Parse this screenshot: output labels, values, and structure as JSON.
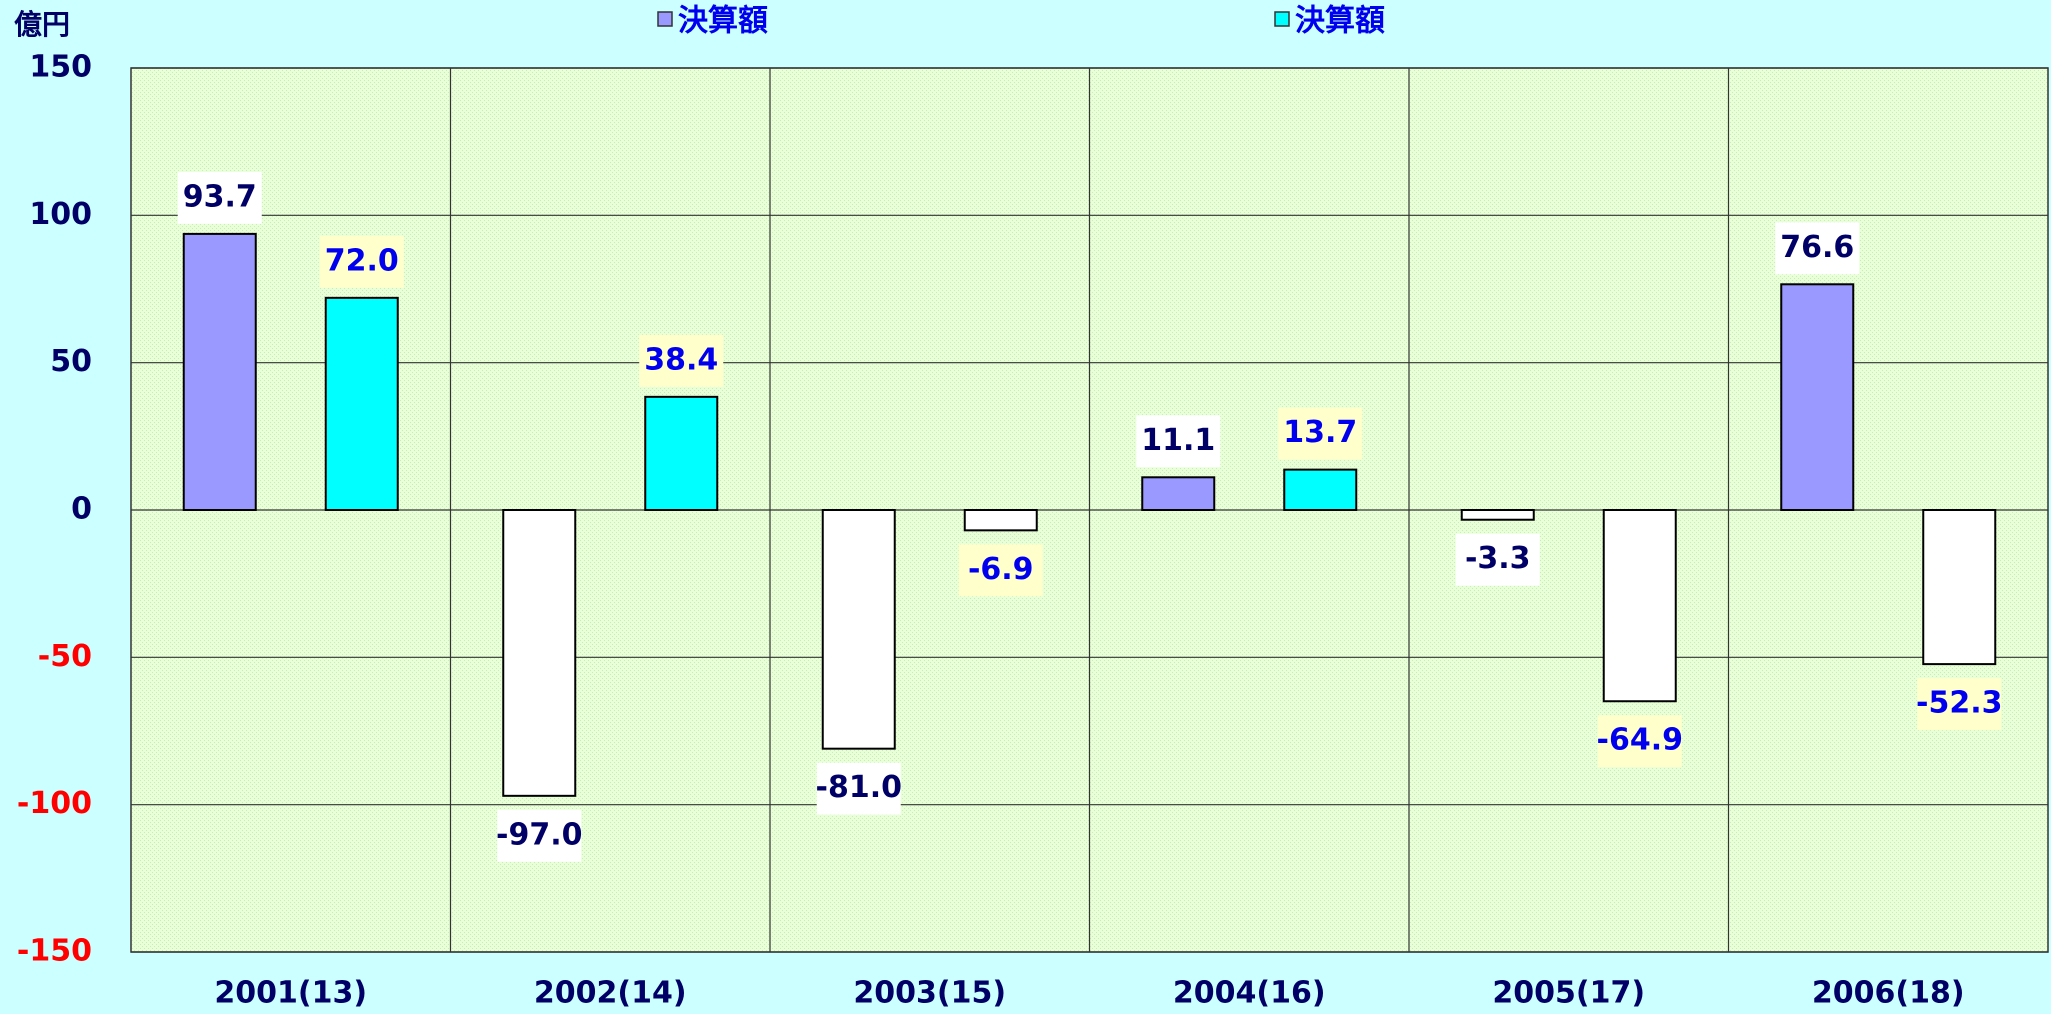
{
  "chart_data": {
    "type": "bar",
    "y_unit_label": "億円",
    "categories": [
      "2001(13)",
      "2002(14)",
      "2003(15)",
      "2004(16)",
      "2005(17)",
      "2006(18)"
    ],
    "series": [
      {
        "name": "決算額",
        "color": "#9999ff",
        "label_color": "#000066",
        "label_background": "#ffffff",
        "values": [
          93.7,
          -97.0,
          -81.0,
          11.1,
          -3.3,
          76.6
        ],
        "value_labels": [
          "93.7",
          "-97.0",
          "-81.0",
          "11.1",
          "-3.3",
          "76.6"
        ]
      },
      {
        "name": "決算額",
        "color": "#00ffff",
        "label_color": "#0000ee",
        "label_background": "#ffffcc",
        "values": [
          72.0,
          38.4,
          -6.9,
          13.7,
          -64.9,
          -52.3
        ],
        "value_labels": [
          "72.0",
          "38.4",
          "-6.9",
          "13.7",
          "-64.9",
          "-52.3"
        ]
      }
    ],
    "negative_color": "#ffffff",
    "ylim": [
      -150,
      150
    ],
    "yticks": [
      150,
      100,
      50,
      0,
      -50,
      -100,
      -150
    ],
    "negative_tick_color": "#ff0000",
    "tick_color": "#000066",
    "grid": true
  }
}
